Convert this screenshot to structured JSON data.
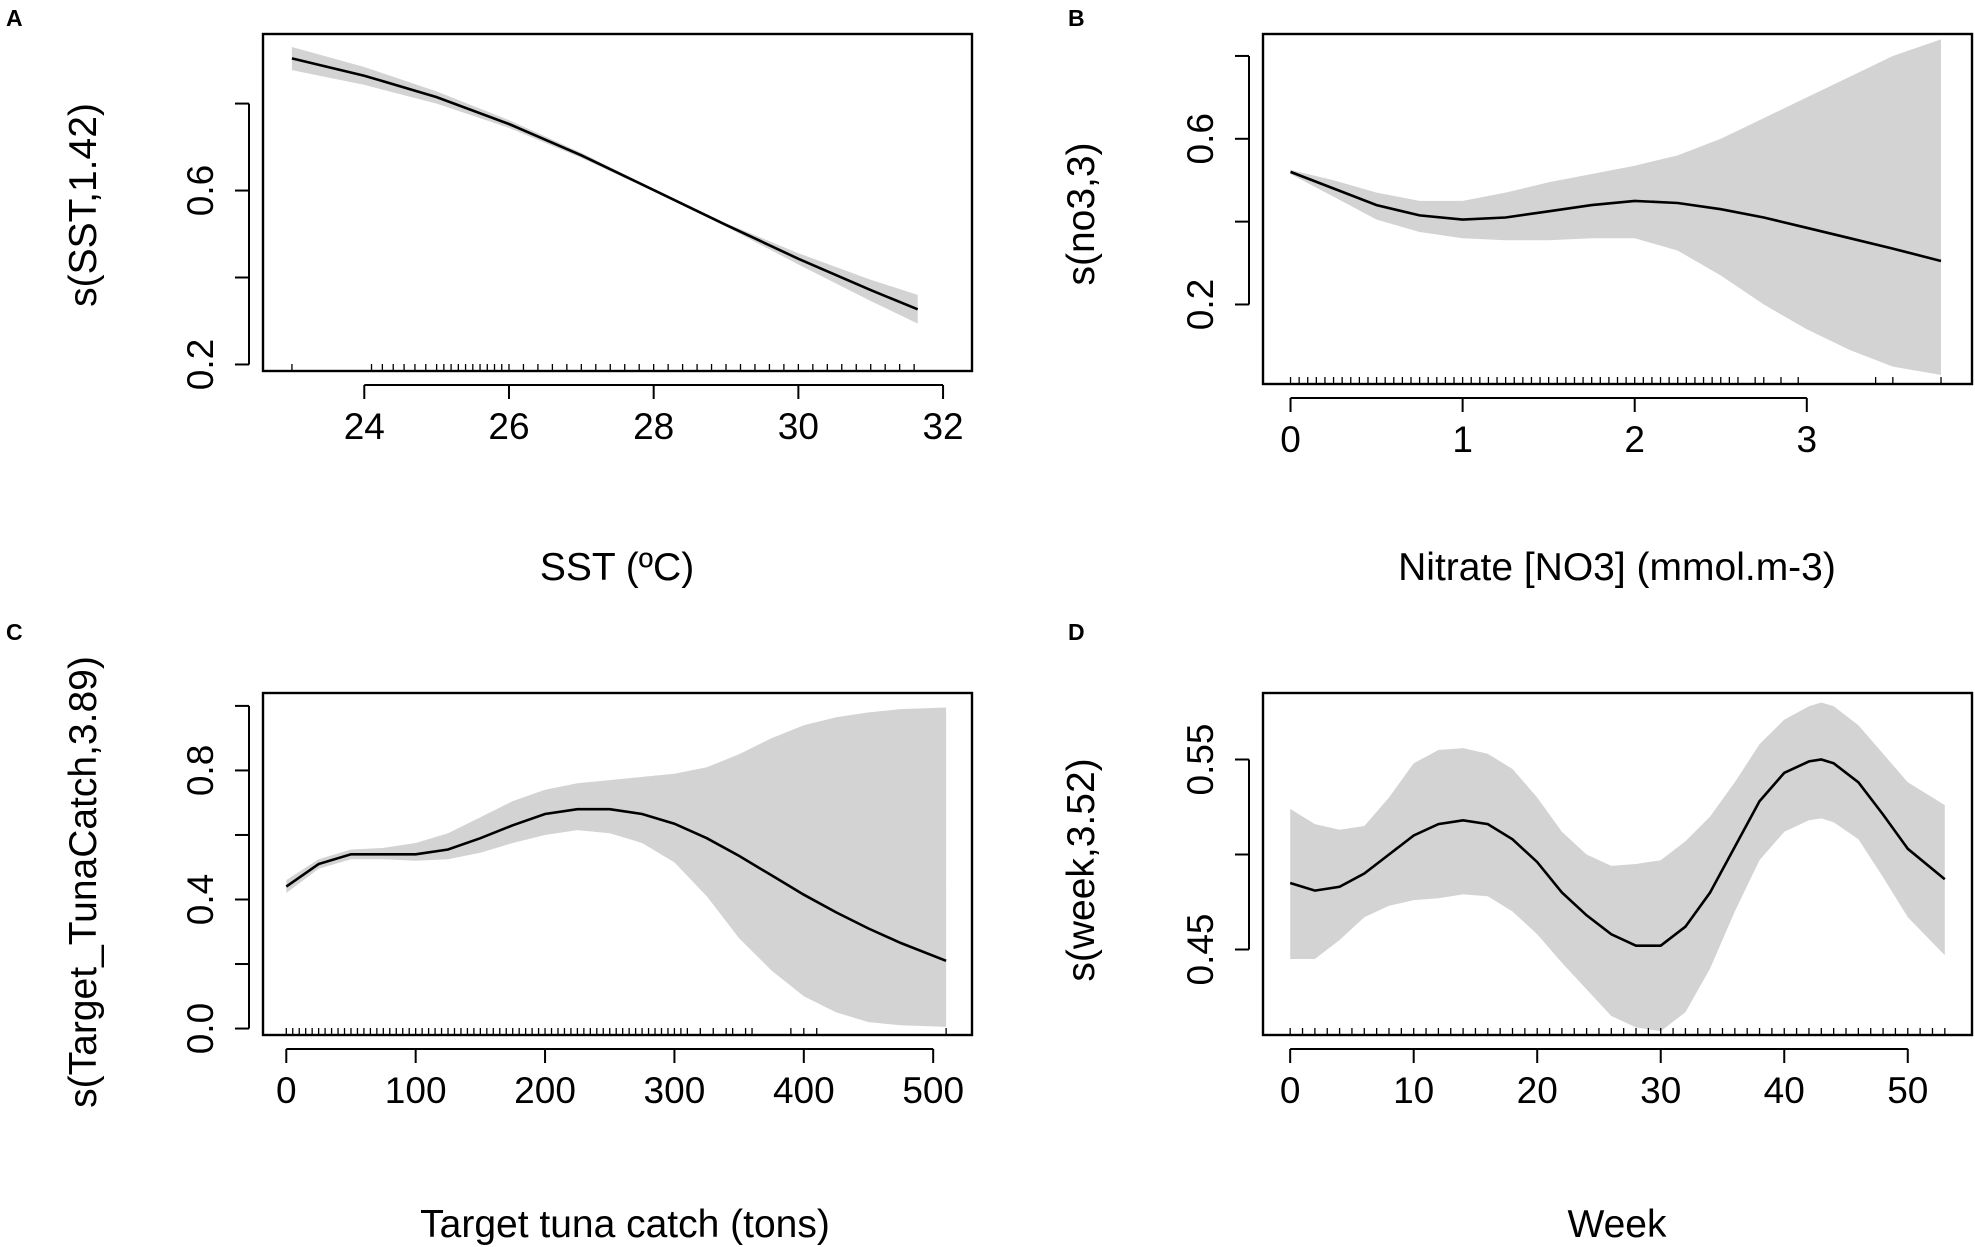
{
  "figure": {
    "panels": [
      "A",
      "B",
      "C",
      "D"
    ],
    "band_color": "#d3d3d3",
    "line_color": "#000000"
  },
  "chart_data": [
    {
      "panel": "A",
      "type": "line",
      "xlabel": "SST (ºC)",
      "ylabel": "s(SST,1.42)",
      "xlim": [
        22.6,
        32.4
      ],
      "ylim": [
        0.185,
        0.96
      ],
      "xticks": [
        24,
        26,
        28,
        30,
        32
      ],
      "xtick_labels": [
        "24",
        "26",
        "28",
        "30",
        "32"
      ],
      "yticks": [
        0.2,
        0.4,
        0.6,
        0.8
      ],
      "ytick_labels": [
        "0.2",
        "",
        "0.6",
        ""
      ],
      "series": [
        {
          "name": "fit",
          "x": [
            23.0,
            24.0,
            25.0,
            26.0,
            27.0,
            28.0,
            29.0,
            30.0,
            31.0,
            31.65
          ],
          "values": [
            0.904,
            0.864,
            0.815,
            0.753,
            0.681,
            0.601,
            0.521,
            0.443,
            0.371,
            0.327
          ]
        },
        {
          "name": "upper",
          "x": [
            23.0,
            24.0,
            25.0,
            26.0,
            27.0,
            28.0,
            29.0,
            30.0,
            31.0,
            31.65
          ],
          "values": [
            0.93,
            0.884,
            0.828,
            0.762,
            0.687,
            0.604,
            0.525,
            0.456,
            0.395,
            0.36
          ]
        },
        {
          "name": "lower",
          "x": [
            23.0,
            24.0,
            25.0,
            26.0,
            27.0,
            28.0,
            29.0,
            30.0,
            31.0,
            31.65
          ],
          "values": [
            0.877,
            0.843,
            0.8,
            0.744,
            0.675,
            0.598,
            0.517,
            0.43,
            0.346,
            0.294
          ]
        }
      ],
      "rug": [
        23.0,
        24.1,
        24.25,
        24.4,
        24.55,
        24.7,
        24.85,
        25.0,
        25.1,
        25.2,
        25.3,
        25.4,
        25.5,
        25.6,
        25.7,
        25.8,
        25.9,
        26.0,
        26.2,
        26.4,
        26.6,
        26.8,
        27.0,
        27.2,
        27.4,
        27.6,
        27.8,
        28.0,
        28.2,
        28.4,
        28.6,
        28.8,
        29.0,
        29.2,
        29.4,
        29.6,
        29.8,
        30.0,
        30.2,
        30.4,
        30.6,
        30.8,
        31.0,
        31.2,
        31.4,
        31.6
      ]
    },
    {
      "panel": "B",
      "type": "line",
      "xlabel": "Nitrate [NO3] (mmol.m-3)",
      "ylabel": "s(no3,3)",
      "xlim": [
        -0.16,
        3.96
      ],
      "ylim": [
        0.008,
        0.853
      ],
      "xticks": [
        0,
        1,
        2,
        3
      ],
      "xtick_labels": [
        "0",
        "1",
        "2",
        "3"
      ],
      "yticks": [
        0.2,
        0.4,
        0.6,
        0.8
      ],
      "ytick_labels": [
        "0.2",
        "",
        "0.6",
        ""
      ],
      "series": [
        {
          "name": "fit",
          "x": [
            0.0,
            0.25,
            0.5,
            0.75,
            1.0,
            1.25,
            1.5,
            1.75,
            2.0,
            2.25,
            2.5,
            2.75,
            3.0,
            3.25,
            3.5,
            3.78
          ],
          "values": [
            0.52,
            0.48,
            0.44,
            0.415,
            0.405,
            0.41,
            0.425,
            0.44,
            0.45,
            0.445,
            0.43,
            0.41,
            0.385,
            0.36,
            0.335,
            0.305
          ]
        },
        {
          "name": "upper",
          "x": [
            0.0,
            0.25,
            0.5,
            0.75,
            1.0,
            1.25,
            1.5,
            1.75,
            2.0,
            2.25,
            2.5,
            2.75,
            3.0,
            3.25,
            3.5,
            3.78
          ],
          "values": [
            0.525,
            0.5,
            0.47,
            0.45,
            0.45,
            0.47,
            0.495,
            0.515,
            0.535,
            0.56,
            0.6,
            0.65,
            0.7,
            0.75,
            0.8,
            0.84
          ]
        },
        {
          "name": "lower",
          "x": [
            0.0,
            0.25,
            0.5,
            0.75,
            1.0,
            1.25,
            1.5,
            1.75,
            2.0,
            2.25,
            2.5,
            2.75,
            3.0,
            3.25,
            3.5,
            3.78
          ],
          "values": [
            0.515,
            0.46,
            0.405,
            0.375,
            0.36,
            0.355,
            0.355,
            0.36,
            0.36,
            0.33,
            0.27,
            0.2,
            0.14,
            0.09,
            0.05,
            0.03
          ]
        }
      ],
      "rug": [
        0.0,
        0.05,
        0.1,
        0.15,
        0.2,
        0.25,
        0.3,
        0.35,
        0.4,
        0.45,
        0.5,
        0.55,
        0.6,
        0.65,
        0.7,
        0.75,
        0.8,
        0.85,
        0.9,
        0.95,
        1.0,
        1.05,
        1.1,
        1.15,
        1.2,
        1.25,
        1.3,
        1.35,
        1.4,
        1.45,
        1.5,
        1.55,
        1.6,
        1.65,
        1.7,
        1.75,
        1.8,
        1.85,
        1.9,
        1.95,
        2.0,
        2.05,
        2.1,
        2.15,
        2.2,
        2.25,
        2.3,
        2.35,
        2.4,
        2.45,
        2.5,
        2.55,
        2.6,
        2.7,
        2.75,
        2.85,
        2.95,
        3.4,
        3.5,
        3.78
      ]
    },
    {
      "panel": "C",
      "type": "line",
      "xlabel": "Target tuna catch (tons)",
      "ylabel": "s(Target_TunaCatch,3.89)",
      "xlim": [
        -18,
        530
      ],
      "ylim": [
        -0.02,
        1.04
      ],
      "xticks": [
        0,
        100,
        200,
        300,
        400,
        500
      ],
      "xtick_labels": [
        "0",
        "100",
        "200",
        "300",
        "400",
        "500"
      ],
      "yticks": [
        0.0,
        0.2,
        0.4,
        0.6,
        0.8,
        1.0
      ],
      "ytick_labels": [
        "0.0",
        "",
        "0.4",
        "",
        "0.8",
        ""
      ],
      "series": [
        {
          "name": "fit",
          "x": [
            0,
            25,
            50,
            75,
            100,
            125,
            150,
            175,
            200,
            225,
            250,
            275,
            300,
            325,
            350,
            375,
            400,
            425,
            450,
            475,
            510
          ],
          "values": [
            0.44,
            0.51,
            0.54,
            0.54,
            0.54,
            0.555,
            0.59,
            0.63,
            0.665,
            0.68,
            0.68,
            0.665,
            0.635,
            0.59,
            0.535,
            0.475,
            0.415,
            0.36,
            0.31,
            0.265,
            0.21
          ]
        },
        {
          "name": "upper",
          "x": [
            0,
            25,
            50,
            75,
            100,
            125,
            150,
            175,
            200,
            225,
            250,
            275,
            300,
            325,
            350,
            375,
            400,
            425,
            450,
            475,
            510
          ],
          "values": [
            0.46,
            0.525,
            0.555,
            0.56,
            0.575,
            0.605,
            0.655,
            0.705,
            0.74,
            0.76,
            0.77,
            0.78,
            0.79,
            0.81,
            0.85,
            0.9,
            0.94,
            0.965,
            0.98,
            0.99,
            0.995
          ]
        },
        {
          "name": "lower",
          "x": [
            0,
            25,
            50,
            75,
            100,
            125,
            150,
            175,
            200,
            225,
            250,
            275,
            300,
            325,
            350,
            375,
            400,
            425,
            450,
            475,
            510
          ],
          "values": [
            0.42,
            0.495,
            0.525,
            0.525,
            0.52,
            0.525,
            0.545,
            0.575,
            0.6,
            0.615,
            0.605,
            0.575,
            0.515,
            0.41,
            0.28,
            0.18,
            0.1,
            0.05,
            0.02,
            0.01,
            0.005
          ]
        }
      ],
      "rug": [
        0,
        5,
        10,
        15,
        20,
        25,
        30,
        35,
        40,
        45,
        50,
        55,
        60,
        65,
        70,
        75,
        80,
        85,
        90,
        95,
        100,
        105,
        110,
        115,
        120,
        125,
        130,
        135,
        140,
        145,
        150,
        155,
        160,
        165,
        170,
        175,
        180,
        185,
        190,
        195,
        200,
        205,
        210,
        215,
        220,
        225,
        230,
        235,
        240,
        245,
        250,
        255,
        260,
        265,
        270,
        275,
        280,
        285,
        290,
        295,
        300,
        305,
        310,
        320,
        330,
        340,
        345,
        355,
        360,
        390,
        400,
        410,
        510
      ]
    },
    {
      "panel": "D",
      "type": "line",
      "xlabel": "Week",
      "ylabel": "s(week,3.52)",
      "xlim": [
        -2.2,
        55.2
      ],
      "ylim": [
        0.405,
        0.585
      ],
      "xticks": [
        0,
        10,
        20,
        30,
        40,
        50
      ],
      "xtick_labels": [
        "0",
        "10",
        "20",
        "30",
        "40",
        "50"
      ],
      "yticks": [
        0.45,
        0.5,
        0.55
      ],
      "ytick_labels": [
        "0.45",
        "",
        "0.55"
      ],
      "series": [
        {
          "name": "fit",
          "x": [
            0,
            2,
            4,
            6,
            8,
            10,
            12,
            14,
            16,
            18,
            20,
            22,
            24,
            26,
            28,
            30,
            32,
            34,
            36,
            38,
            40,
            42,
            43,
            44,
            46,
            48,
            50,
            53
          ],
          "values": [
            0.485,
            0.481,
            0.483,
            0.49,
            0.5,
            0.51,
            0.516,
            0.518,
            0.516,
            0.508,
            0.496,
            0.48,
            0.468,
            0.458,
            0.452,
            0.452,
            0.462,
            0.48,
            0.504,
            0.528,
            0.543,
            0.549,
            0.55,
            0.548,
            0.538,
            0.521,
            0.503,
            0.487
          ]
        },
        {
          "name": "upper",
          "x": [
            0,
            2,
            4,
            6,
            8,
            10,
            12,
            14,
            16,
            18,
            20,
            22,
            24,
            26,
            28,
            30,
            32,
            34,
            36,
            38,
            40,
            42,
            43,
            44,
            46,
            48,
            50,
            53
          ],
          "values": [
            0.524,
            0.516,
            0.513,
            0.515,
            0.53,
            0.548,
            0.555,
            0.556,
            0.553,
            0.545,
            0.53,
            0.512,
            0.5,
            0.494,
            0.495,
            0.497,
            0.507,
            0.52,
            0.538,
            0.558,
            0.571,
            0.578,
            0.58,
            0.578,
            0.568,
            0.553,
            0.538,
            0.526
          ]
        },
        {
          "name": "lower",
          "x": [
            0,
            2,
            4,
            6,
            8,
            10,
            12,
            14,
            16,
            18,
            20,
            22,
            24,
            26,
            28,
            30,
            32,
            34,
            36,
            38,
            40,
            42,
            43,
            44,
            46,
            48,
            50,
            53
          ],
          "values": [
            0.445,
            0.445,
            0.455,
            0.467,
            0.473,
            0.476,
            0.477,
            0.479,
            0.478,
            0.47,
            0.458,
            0.443,
            0.429,
            0.415,
            0.409,
            0.407,
            0.417,
            0.44,
            0.47,
            0.497,
            0.512,
            0.518,
            0.519,
            0.517,
            0.508,
            0.488,
            0.467,
            0.447
          ]
        }
      ],
      "rug": [
        0,
        1,
        2,
        3,
        4,
        5,
        6,
        7,
        8,
        9,
        10,
        11,
        12,
        13,
        14,
        15,
        16,
        17,
        18,
        19,
        20,
        21,
        22,
        23,
        24,
        25,
        26,
        27,
        28,
        29,
        30,
        31,
        32,
        33,
        34,
        35,
        36,
        37,
        38,
        39,
        40,
        41,
        42,
        43,
        44,
        45,
        46,
        47,
        48,
        49,
        50,
        51,
        52,
        53
      ]
    }
  ]
}
